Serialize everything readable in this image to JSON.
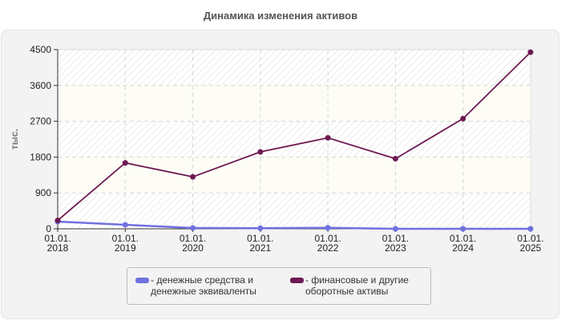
{
  "title": "Динамика изменения активов",
  "chart_data": {
    "type": "line",
    "title": "Динамика изменения активов",
    "xlabel": "",
    "ylabel": "тыс.",
    "ylim": [
      0,
      4500
    ],
    "yticks": [
      0,
      900,
      1800,
      2700,
      3600,
      4500
    ],
    "categories": [
      "01.01.\n2018",
      "01.01.\n2019",
      "01.01.\n2020",
      "01.01.\n2021",
      "01.01.\n2022",
      "01.01.\n2023",
      "01.01.\n2024",
      "01.01.\n2025"
    ],
    "grid": true,
    "legend_position": "bottom",
    "series": [
      {
        "name": "денежные средства и денежные эквиваленты",
        "color": "#7070e0",
        "values": [
          180,
          100,
          20,
          15,
          25,
          0,
          0,
          0
        ]
      },
      {
        "name": "финансовые и другие оборотные активы",
        "color": "#6e1a52",
        "values": [
          210,
          1655,
          1305,
          1930,
          2285,
          1760,
          2766,
          4434
        ]
      }
    ]
  },
  "legend": {
    "items": [
      {
        "label": "- денежные средства и\nденежные эквиваленты",
        "color": "#7070e0"
      },
      {
        "label": "- финансовые и другие\nоборотные активы",
        "color": "#6e1a52"
      }
    ]
  }
}
